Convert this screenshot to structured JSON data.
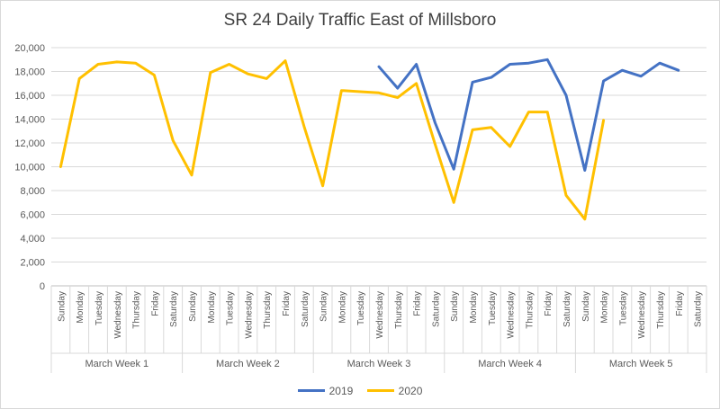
{
  "chart_data": {
    "type": "line",
    "title": "SR 24 Daily Traffic East of Millsboro",
    "xlabel": "",
    "ylabel": "",
    "ylim": [
      0,
      20000
    ],
    "yticks": [
      0,
      2000,
      4000,
      6000,
      8000,
      10000,
      12000,
      14000,
      16000,
      18000,
      20000
    ],
    "ytick_labels": [
      "0",
      "2,000",
      "4,000",
      "6,000",
      "8,000",
      "10,000",
      "12,000",
      "14,000",
      "16,000",
      "18,000",
      "20,000"
    ],
    "grid": true,
    "legend_position": "bottom",
    "groups": [
      "March Week 1",
      "March Week 2",
      "March Week 3",
      "March Week 4",
      "March Week 5"
    ],
    "categories": [
      "Sunday",
      "Monday",
      "Tuesday",
      "Wednesday",
      "Thursday",
      "Friday",
      "Saturday",
      "Sunday",
      "Monday",
      "Tuesday",
      "Wednesday",
      "Thursday",
      "Friday",
      "Saturday",
      "Sunday",
      "Monday",
      "Tuesday",
      "Wednesday",
      "Thursday",
      "Friday",
      "Saturday",
      "Sunday",
      "Monday",
      "Tuesday",
      "Wednesday",
      "Thursday",
      "Friday",
      "Saturday",
      "Sunday",
      "Monday",
      "Tuesday",
      "Wednesday",
      "Thursday",
      "Friday",
      "Saturday"
    ],
    "series": [
      {
        "name": "2019",
        "color": "#4472c4",
        "values": [
          null,
          null,
          null,
          null,
          null,
          null,
          null,
          null,
          null,
          null,
          null,
          null,
          null,
          null,
          null,
          null,
          null,
          18400,
          16600,
          18600,
          13700,
          9800,
          17100,
          17500,
          18600,
          18700,
          19000,
          16000,
          9700,
          17200,
          18100,
          17600,
          18700,
          18100,
          null
        ]
      },
      {
        "name": "2020",
        "color": "#ffc000",
        "values": [
          10000,
          17400,
          18600,
          18800,
          18700,
          17700,
          12200,
          9300,
          17900,
          18600,
          17800,
          17400,
          18900,
          13400,
          8400,
          16400,
          16300,
          16200,
          15800,
          17000,
          11900,
          7000,
          13100,
          13300,
          11700,
          14600,
          14600,
          7600,
          5600,
          13900,
          null,
          null,
          null,
          null,
          null
        ]
      }
    ]
  }
}
